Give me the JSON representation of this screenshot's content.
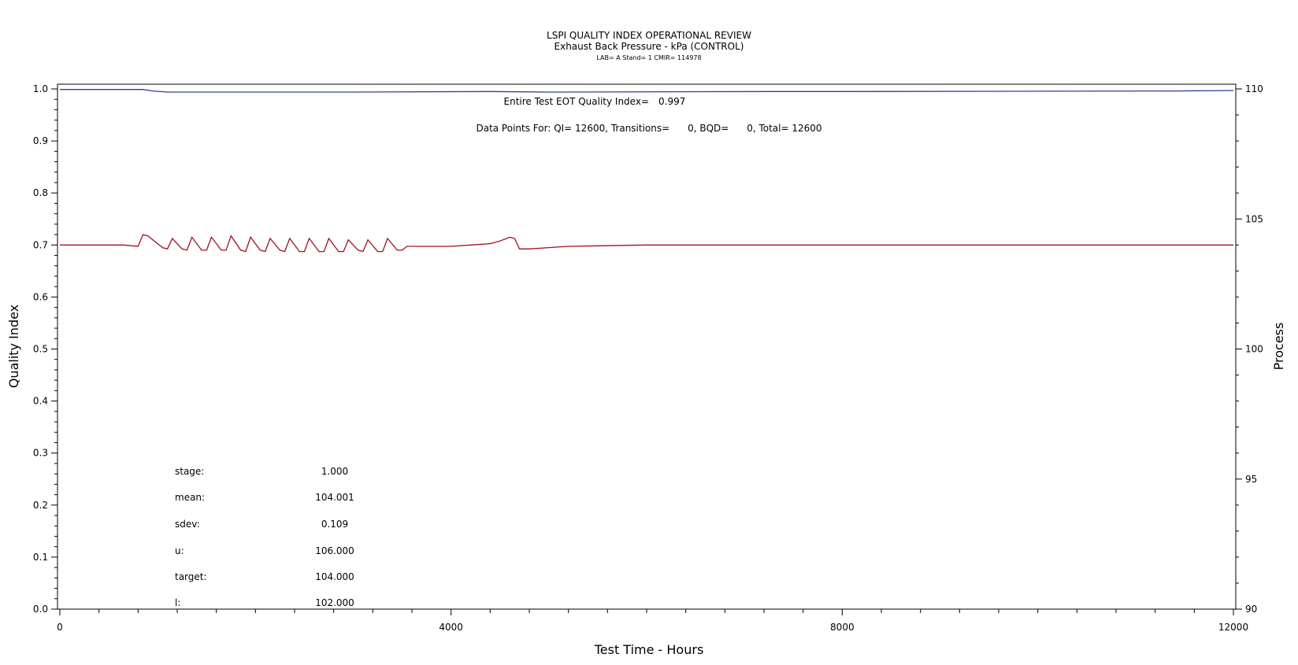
{
  "chart_data": {
    "type": "line",
    "title": "LSPI QUALITY INDEX OPERATIONAL REVIEW",
    "subtitle": "Exhaust Back Pressure - kPa (CONTROL)",
    "subtitle2": "LAB= A Stand= 1 CMIR= 114978",
    "xlabel": "Test Time - Hours",
    "ylabel_left": "Quality Index",
    "ylabel_right": "Process",
    "xlim": [
      0,
      12000
    ],
    "ylim_left": [
      0.0,
      1.0
    ],
    "ylim_right": [
      90,
      110
    ],
    "x_ticks": [
      "0",
      "4000",
      "8000",
      "12000"
    ],
    "y_left_ticks": [
      "0.0",
      "0.1",
      "0.2",
      "0.3",
      "0.4",
      "0.5",
      "0.6",
      "0.7",
      "0.8",
      "0.9",
      "1.0"
    ],
    "y_right_ticks": [
      "90",
      "95",
      "100",
      "105",
      "110"
    ],
    "grid": false,
    "annotations": {
      "eot_label": "Entire Test EOT Quality Index=",
      "eot_value": "0.997",
      "data_points": "Data Points For: QI= 12600, Transitions=      0, BQD=      0, Total= 12600"
    },
    "stats": [
      {
        "label": "stage:",
        "value": "1.000"
      },
      {
        "label": "mean:",
        "value": "104.001"
      },
      {
        "label": "sdev:",
        "value": "0.109"
      },
      {
        "label": "u:",
        "value": "106.000"
      },
      {
        "label": "target:",
        "value": "104.000"
      },
      {
        "label": "l:",
        "value": "102.000"
      }
    ],
    "series": [
      {
        "axis": "left",
        "color": "#2f3a9e",
        "x": [
          0,
          850,
          950,
          1100,
          2000,
          3000,
          4400,
          5000,
          7300,
          8000,
          11400,
          12000
        ],
        "values": [
          0.999,
          0.999,
          0.996,
          0.994,
          0.994,
          0.994,
          0.995,
          0.994,
          0.995,
          0.995,
          0.996,
          0.997
        ]
      },
      {
        "axis": "right",
        "color": "#a01020",
        "x": [
          0,
          400,
          650,
          800,
          850,
          900,
          950,
          1000,
          1050,
          1100,
          1150,
          1250,
          1300,
          1350,
          1450,
          1500,
          1550,
          1650,
          1700,
          1750,
          1850,
          1900,
          1950,
          2050,
          2100,
          2150,
          2250,
          2300,
          2350,
          2450,
          2500,
          2550,
          2650,
          2700,
          2750,
          2850,
          2900,
          2950,
          3050,
          3100,
          3150,
          3250,
          3300,
          3350,
          3450,
          3500,
          3550,
          3600,
          3800,
          4000,
          4200,
          4400,
          4500,
          4600,
          4650,
          4700,
          4800,
          5000,
          5200,
          6000,
          7000,
          8000,
          9000,
          10000,
          11000,
          12000
        ],
        "values": [
          104.0,
          104.0,
          104.0,
          103.95,
          104.4,
          104.35,
          104.2,
          104.05,
          103.9,
          103.85,
          104.25,
          103.85,
          103.8,
          104.3,
          103.8,
          103.8,
          104.3,
          103.8,
          103.8,
          104.35,
          103.8,
          103.75,
          104.3,
          103.8,
          103.75,
          104.25,
          103.8,
          103.75,
          104.25,
          103.75,
          103.75,
          104.25,
          103.75,
          103.75,
          104.25,
          103.75,
          103.75,
          104.2,
          103.8,
          103.75,
          104.2,
          103.75,
          103.75,
          104.25,
          103.8,
          103.8,
          103.95,
          103.95,
          103.95,
          103.95,
          104.0,
          104.05,
          104.15,
          104.3,
          104.25,
          103.85,
          103.85,
          103.9,
          103.95,
          104.0,
          104.0,
          104.0,
          104.0,
          104.0,
          104.0,
          104.0
        ]
      }
    ]
  }
}
